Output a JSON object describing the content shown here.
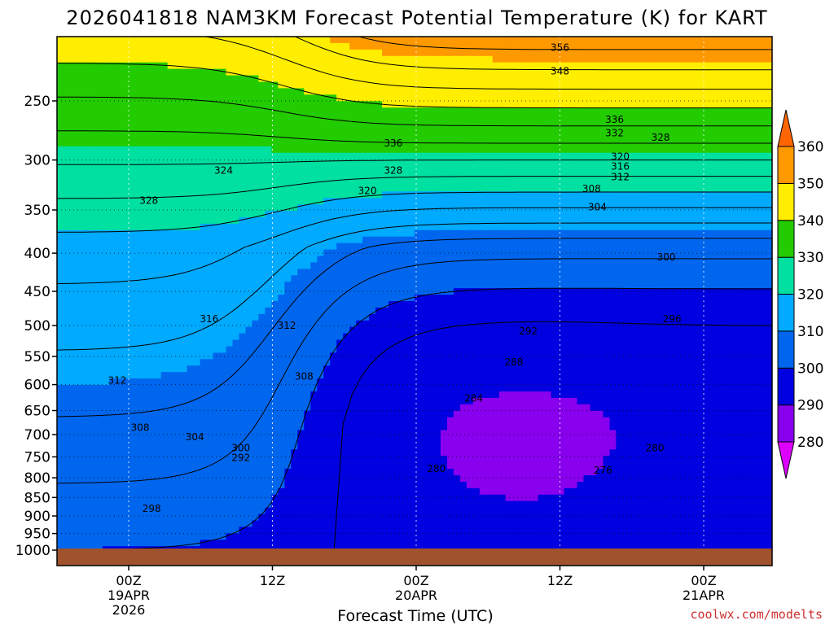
{
  "chart_data": {
    "type": "heatmap",
    "title": "2026041818 NAM3KM Forecast Potential Temperature (K) for KART",
    "xlabel": "Forecast Time (UTC)",
    "ylabel": "",
    "y_scale": "log-pressure",
    "yticks": [
      250,
      300,
      350,
      400,
      450,
      500,
      550,
      600,
      650,
      700,
      750,
      800,
      850,
      900,
      950,
      1000
    ],
    "x_ticks": [
      {
        "label": "00Z",
        "sub1": "19APR",
        "sub2": "2026"
      },
      {
        "label": "12Z",
        "sub1": "",
        "sub2": ""
      },
      {
        "label": "00Z",
        "sub1": "20APR",
        "sub2": ""
      },
      {
        "label": "12Z",
        "sub1": "",
        "sub2": ""
      },
      {
        "label": "00Z",
        "sub1": "21APR",
        "sub2": ""
      }
    ],
    "grid": true,
    "colorbar": {
      "levels": [
        280,
        290,
        300,
        310,
        320,
        330,
        340,
        350,
        360
      ],
      "colors": [
        "#dd00ff",
        "#8800ee",
        "#0000e0",
        "#0066ee",
        "#00aaff",
        "#00e0a0",
        "#22cc00",
        "#ffee00",
        "#ff9900",
        "#ff6600"
      ]
    },
    "contour_labels": [
      {
        "label": "356",
        "t": 1.5,
        "p": 212
      },
      {
        "label": "348",
        "t": 1.5,
        "p": 228
      },
      {
        "label": "336",
        "t": 0.92,
        "p": 285
      },
      {
        "label": "336",
        "t": 1.69,
        "p": 265
      },
      {
        "label": "332",
        "t": 1.69,
        "p": 276
      },
      {
        "label": "328",
        "t": 1.85,
        "p": 280
      },
      {
        "label": "328",
        "t": 0.07,
        "p": 340
      },
      {
        "label": "328",
        "t": 0.92,
        "p": 310
      },
      {
        "label": "324",
        "t": 0.33,
        "p": 310
      },
      {
        "label": "320",
        "t": 0.83,
        "p": 330
      },
      {
        "label": "320",
        "t": 1.71,
        "p": 297
      },
      {
        "label": "316",
        "t": 1.71,
        "p": 306
      },
      {
        "label": "312",
        "t": 1.71,
        "p": 316
      },
      {
        "label": "308",
        "t": 1.61,
        "p": 328
      },
      {
        "label": "304",
        "t": 1.63,
        "p": 347
      },
      {
        "label": "300",
        "t": 1.87,
        "p": 405
      },
      {
        "label": "296",
        "t": 1.89,
        "p": 490
      },
      {
        "label": "292",
        "t": 1.39,
        "p": 509
      },
      {
        "label": "288",
        "t": 1.34,
        "p": 560
      },
      {
        "label": "284",
        "t": 1.2,
        "p": 626
      },
      {
        "label": "280",
        "t": 1.07,
        "p": 778
      },
      {
        "label": "280",
        "t": 1.83,
        "p": 730
      },
      {
        "label": "276",
        "t": 1.65,
        "p": 782
      },
      {
        "label": "316",
        "t": 0.28,
        "p": 490
      },
      {
        "label": "312",
        "t": 0.55,
        "p": 500
      },
      {
        "label": "312",
        "t": -0.04,
        "p": 592
      },
      {
        "label": "308",
        "t": 0.61,
        "p": 585
      },
      {
        "label": "308",
        "t": 0.04,
        "p": 685
      },
      {
        "label": "304",
        "t": 0.23,
        "p": 705
      },
      {
        "label": "300",
        "t": 0.39,
        "p": 730
      },
      {
        "label": "292",
        "t": 0.39,
        "p": 752
      },
      {
        "label": "298",
        "t": 0.08,
        "p": 880
      }
    ]
  },
  "credit": "coolwx.com/modelts"
}
